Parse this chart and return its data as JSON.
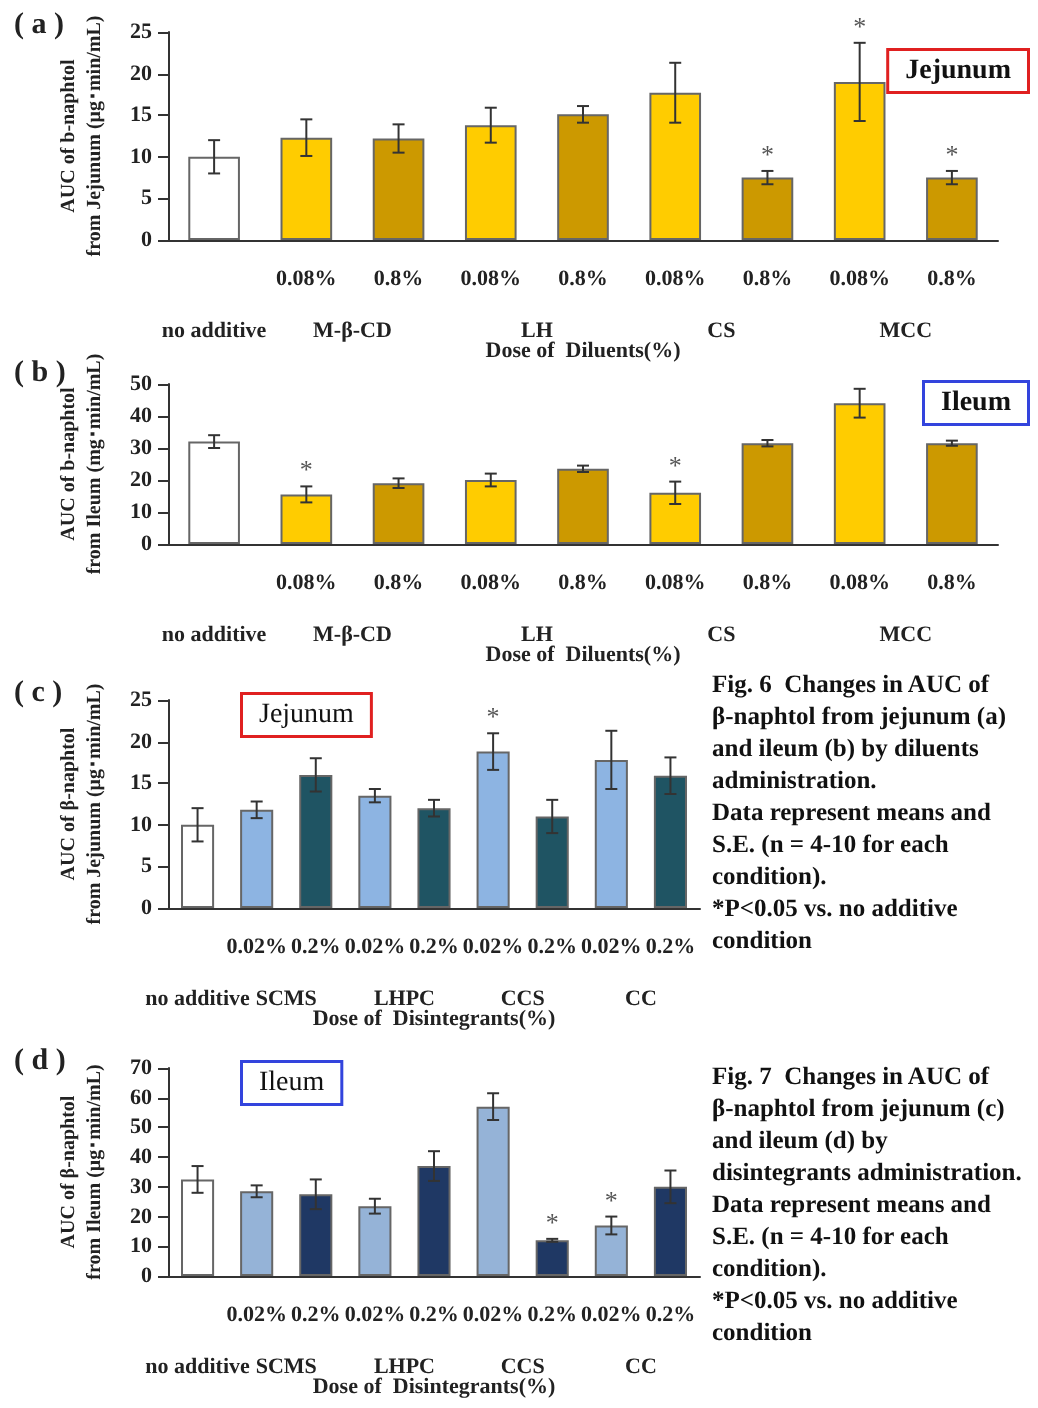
{
  "chart_data": [
    {
      "type": "bar",
      "title": "( a )",
      "xlabel": "Dose of  Diluents(%)",
      "ylabel": "AUC of b-naphtol\nfrom Jejunum (μg･min/mL)",
      "categories": [
        null,
        "0.08%",
        "0.8%",
        "0.08%",
        "0.8%",
        "0.08%",
        "0.8%",
        "0.08%",
        "0.8%"
      ],
      "values": [
        10,
        12.3,
        12.2,
        13.8,
        15.1,
        17.7,
        7.5,
        19,
        7.5
      ],
      "errors": [
        2,
        2.2,
        1.7,
        2.1,
        1,
        3.6,
        0.8,
        4.7,
        0.8
      ],
      "value_labels": [
        null,
        null,
        null,
        null,
        null,
        null,
        "*",
        "*",
        "*"
      ],
      "colors": [
        "#ffffff",
        "#ffcc00",
        "#cc9900",
        "#ffcc00",
        "#cc9900",
        "#ffcc00",
        "#cc9900",
        "#ffcc00",
        "#cc9900"
      ],
      "ylim": [
        0,
        25
      ],
      "yticks": [
        0,
        5,
        10,
        15,
        20,
        25
      ],
      "annotations": [
        "Jejunum",
        "no additive",
        "M-β-CD",
        "LH",
        "CS",
        "MCC"
      ]
    },
    {
      "type": "bar",
      "title": "( b )",
      "xlabel": "Dose of  Diluents(%)",
      "ylabel": "AUC of b-naphtol\nfrom Ileum (mg･min/mL)",
      "categories": [
        null,
        "0.08%",
        "0.8%",
        "0.08%",
        "0.8%",
        "0.08%",
        "0.8%",
        "0.08%",
        "0.8%"
      ],
      "values": [
        32,
        15.5,
        19,
        20,
        23.5,
        16,
        31.5,
        44,
        31.5
      ],
      "errors": [
        2,
        2.5,
        1.5,
        2,
        1,
        3.5,
        1,
        4.5,
        0.8
      ],
      "value_labels": [
        null,
        "*",
        null,
        null,
        null,
        "*",
        null,
        null,
        null
      ],
      "colors": [
        "#ffffff",
        "#ffcc00",
        "#cc9900",
        "#ffcc00",
        "#cc9900",
        "#ffcc00",
        "#cc9900",
        "#ffcc00",
        "#cc9900"
      ],
      "ylim": [
        0,
        50
      ],
      "yticks": [
        0,
        10,
        20,
        30,
        40,
        50
      ],
      "annotations": [
        "Ileum",
        "no additive",
        "M-β-CD",
        "LH",
        "CS",
        "MCC"
      ]
    },
    {
      "type": "bar",
      "title": "( c )",
      "xlabel": "Dose of  Disintegrants(%)",
      "ylabel": "AUC of β-naphtol\nfrom Jejunum (μg･min/mL)",
      "categories": [
        null,
        "0.02%",
        "0.2%",
        "0.02%",
        "0.2%",
        "0.02%",
        "0.2%",
        "0.02%",
        "0.2%"
      ],
      "values": [
        10,
        11.8,
        16,
        13.5,
        12,
        18.8,
        11,
        17.8,
        15.9
      ],
      "errors": [
        2,
        1,
        2,
        0.8,
        1,
        2.2,
        2,
        3.5,
        2.2
      ],
      "value_labels": [
        null,
        null,
        null,
        null,
        null,
        "*",
        null,
        null,
        null
      ],
      "colors": [
        "#ffffff",
        "#8db4e2",
        "#1f5463",
        "#8db4e2",
        "#1f5463",
        "#8db4e2",
        "#1f5463",
        "#8db4e2",
        "#1f5463"
      ],
      "ylim": [
        0,
        25
      ],
      "yticks": [
        0,
        5,
        10,
        15,
        20,
        25
      ],
      "annotations": [
        "Jejunum",
        "no additive",
        "SCMS",
        "LHPC",
        "CCS",
        "CC"
      ]
    },
    {
      "type": "bar",
      "title": "( d )",
      "xlabel": "Dose of  Disintegrants(%)",
      "ylabel": "AUC of β-naphtol\nfrom Ileum (μg･min/mL)",
      "categories": [
        null,
        "0.02%",
        "0.2%",
        "0.02%",
        "0.2%",
        "0.02%",
        "0.2%",
        "0.02%",
        "0.2%"
      ],
      "values": [
        32.5,
        28.5,
        27.5,
        23.5,
        37,
        57,
        12,
        17,
        30
      ],
      "errors": [
        4.5,
        2,
        5,
        2.5,
        5,
        4.5,
        0.5,
        3,
        5.5
      ],
      "value_labels": [
        null,
        null,
        null,
        null,
        null,
        null,
        "*",
        "*",
        null
      ],
      "colors": [
        "#ffffff",
        "#95b3d7",
        "#1f3864",
        "#95b3d7",
        "#1f3864",
        "#95b3d7",
        "#1f3864",
        "#95b3d7",
        "#1f3864"
      ],
      "ylim": [
        0,
        70
      ],
      "yticks": [
        0,
        10,
        20,
        30,
        40,
        50,
        60,
        70
      ],
      "annotations": [
        "Ileum",
        "no additive",
        "SCMS",
        "LHPC",
        "CCS",
        "CC"
      ]
    },
    {
      "type": "other",
      "annotations": [
        "Fig. 6  Changes in AUC of β-naphtol from jejunum (a) and ileum (b) by diluents administration.\nData represent means and S.E. (n = 4-10 for each condition).\n*P<0.05 vs. no additive condition",
        "Fig. 7  Changes in AUC of β-naphtol from jejunum (c) and ileum (d) by disintegrants administration.\nData represent means and S.E. (n = 4-10 for each condition).\n*P<0.05 vs. no additive condition"
      ]
    }
  ]
}
